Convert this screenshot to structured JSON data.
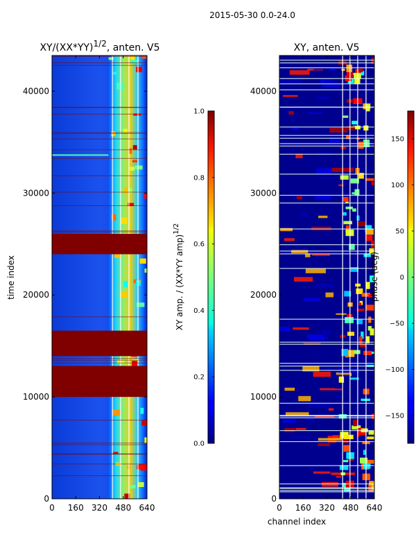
{
  "suptitle": "2015-05-30 0.0-24.0",
  "chart_data": [
    {
      "type": "heatmap",
      "id": "left",
      "title_main": "XY/(XX*YY)",
      "title_exp": "1/2",
      "title_tail": ", anten. V5",
      "xlabel": "",
      "ylabel": "time index",
      "xlim": [
        0,
        640
      ],
      "ylim": [
        0,
        43500
      ],
      "xticks": [
        0,
        160,
        320,
        480,
        640
      ],
      "yticks": [
        0,
        10000,
        20000,
        30000,
        40000
      ],
      "colorbar": {
        "label_main": "XY amp. / (XX*YY amp)",
        "label_exp": "1/2",
        "range": [
          0.0,
          1.0
        ],
        "ticks": [
          "0.0",
          "0.2",
          "0.4",
          "0.6",
          "0.8",
          "1.0"
        ],
        "tick_values": [
          0.0,
          0.2,
          0.4,
          0.6,
          0.8,
          1.0
        ]
      },
      "bands": [
        {
          "y0": 24000,
          "y1": 26000,
          "value": 1.0
        },
        {
          "y0": 14000,
          "y1": 16500,
          "value": 1.0
        },
        {
          "y0": 10000,
          "y1": 13000,
          "value": 1.0
        }
      ],
      "active_channels": [
        380,
        625
      ]
    },
    {
      "type": "heatmap",
      "id": "right",
      "title": "XY, anten. V5",
      "xlabel": "channel index",
      "ylabel": "",
      "xlim": [
        0,
        640
      ],
      "ylim": [
        0,
        43500
      ],
      "xticks": [
        0,
        160,
        320,
        480,
        640
      ],
      "yticks": [
        0,
        10000,
        20000,
        30000,
        40000
      ],
      "colorbar": {
        "label": "phase (deg)",
        "range": [
          -180,
          180
        ],
        "ticks": [
          "150",
          "100",
          "50",
          "0",
          "−50",
          "−100",
          "−150"
        ],
        "tick_values": [
          150,
          100,
          50,
          0,
          -50,
          -100,
          -150
        ]
      },
      "active_channels": [
        400,
        625
      ]
    }
  ]
}
